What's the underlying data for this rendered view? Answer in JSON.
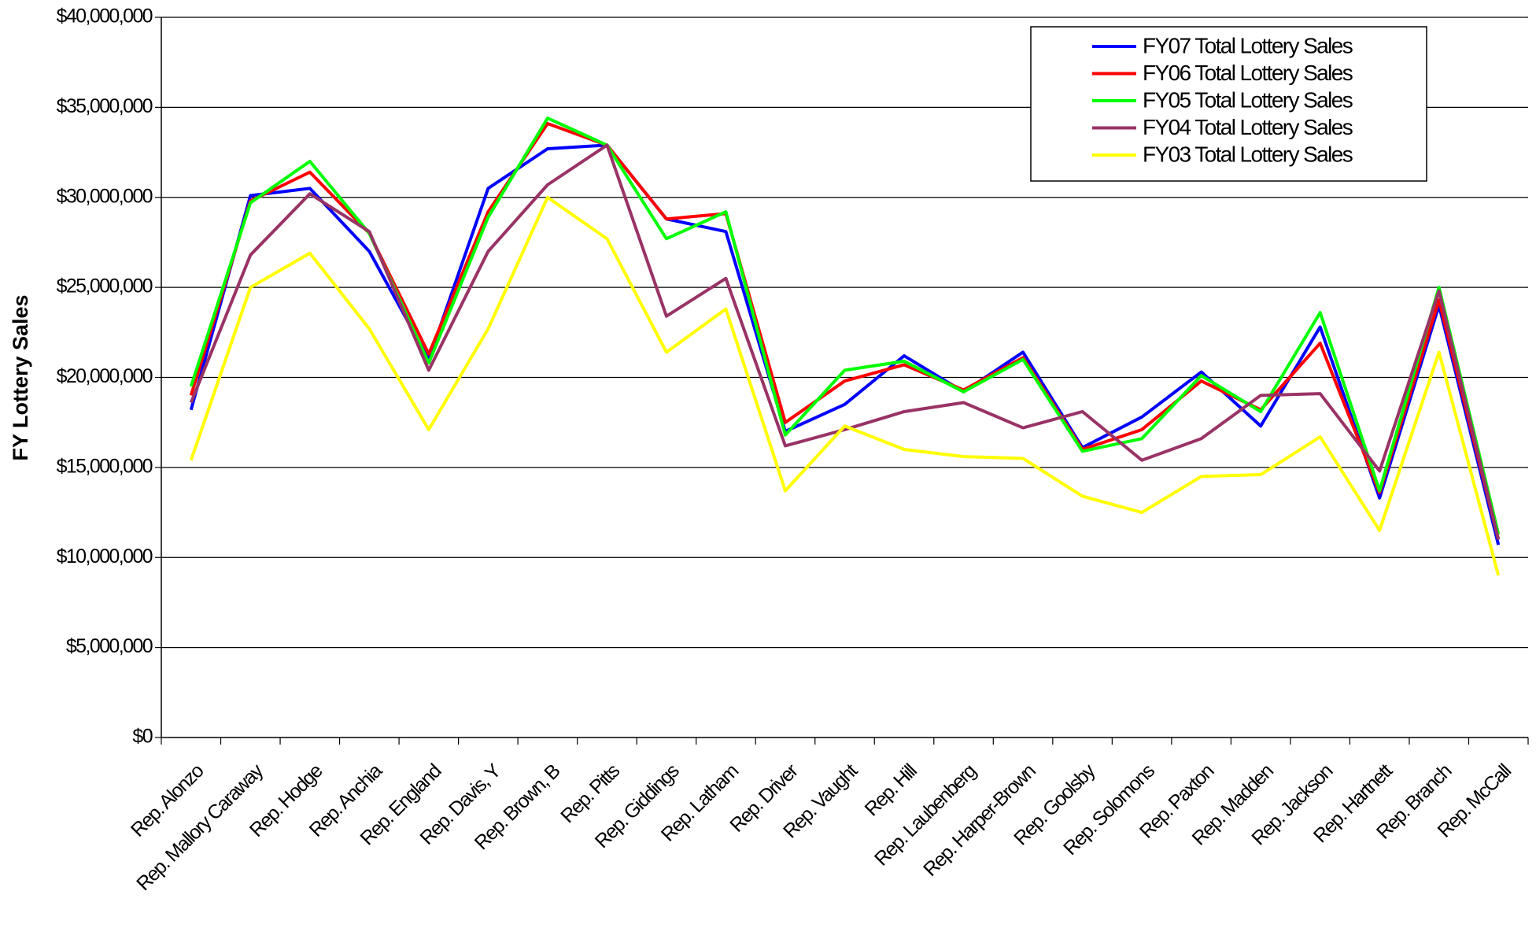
{
  "chart_data": {
    "type": "line",
    "y_axis_label": "FY Lottery Sales",
    "categories": [
      "Rep. Alonzo",
      "Rep. Mallory Caraway",
      "Rep. Hodge",
      "Rep. Anchia",
      "Rep. England",
      "Rep. Davis, Y",
      "Rep. Brown, B",
      "Rep. Pitts",
      "Rep. Giddings",
      "Rep. Latham",
      "Rep. Driver",
      "Rep. Vaught",
      "Rep. Hill",
      "Rep. Laubenberg",
      "Rep. Harper-Brown",
      "Rep. Goolsby",
      "Rep. Solomons",
      "Rep. Paxton",
      "Rep. Madden",
      "Rep. Jackson",
      "Rep. Hartnett",
      "Rep. Branch",
      "Rep. McCall"
    ],
    "series": [
      {
        "name": "FY07 Total Lottery Sales",
        "color": "#0000ff",
        "values": [
          18200000,
          30100000,
          30500000,
          27000000,
          21000000,
          30500000,
          32700000,
          32900000,
          28800000,
          28100000,
          17000000,
          18500000,
          21200000,
          19200000,
          21400000,
          16100000,
          17800000,
          20300000,
          17300000,
          22800000,
          13300000,
          24000000,
          10700000
        ]
      },
      {
        "name": "FY06 Total Lottery Sales",
        "color": "#ff0000",
        "values": [
          19000000,
          29800000,
          31400000,
          28000000,
          21300000,
          29200000,
          34100000,
          32900000,
          28800000,
          29100000,
          17500000,
          19800000,
          20700000,
          19300000,
          21100000,
          16000000,
          17100000,
          19800000,
          18200000,
          21900000,
          13600000,
          24300000,
          11000000
        ]
      },
      {
        "name": "FY05 Total Lottery Sales",
        "color": "#00ff00",
        "values": [
          19500000,
          29700000,
          32000000,
          28000000,
          20800000,
          28900000,
          34400000,
          32900000,
          27700000,
          29200000,
          16800000,
          20400000,
          20900000,
          19200000,
          21000000,
          15900000,
          16600000,
          20100000,
          18100000,
          23600000,
          13700000,
          25000000,
          11300000
        ]
      },
      {
        "name": "FY04 Total Lottery Sales",
        "color": "#993366",
        "values": [
          18600000,
          26800000,
          30200000,
          28100000,
          20400000,
          27000000,
          30700000,
          32900000,
          23400000,
          25500000,
          16200000,
          17100000,
          18100000,
          18600000,
          17200000,
          18100000,
          15400000,
          16600000,
          19000000,
          19100000,
          14800000,
          24800000,
          11000000
        ]
      },
      {
        "name": "FY03 Total Lottery Sales",
        "color": "#ffff00",
        "values": [
          15400000,
          25000000,
          26900000,
          22700000,
          17100000,
          22700000,
          30000000,
          27700000,
          21400000,
          23800000,
          13700000,
          17300000,
          16000000,
          15600000,
          15500000,
          13400000,
          12500000,
          14500000,
          14600000,
          16700000,
          11500000,
          21400000,
          9000000
        ]
      }
    ],
    "ylim": [
      0,
      40000000
    ],
    "yticks": [
      {
        "value": 0,
        "label": "$0"
      },
      {
        "value": 5000000,
        "label": "$5,000,000"
      },
      {
        "value": 10000000,
        "label": "$10,000,000"
      },
      {
        "value": 15000000,
        "label": "$15,000,000"
      },
      {
        "value": 20000000,
        "label": "$20,000,000"
      },
      {
        "value": 25000000,
        "label": "$25,000,000"
      },
      {
        "value": 30000000,
        "label": "$30,000,000"
      },
      {
        "value": 35000000,
        "label": "$35,000,000"
      },
      {
        "value": 40000000,
        "label": "$40,000,000"
      }
    ],
    "grid": true,
    "legend": "top-right"
  }
}
